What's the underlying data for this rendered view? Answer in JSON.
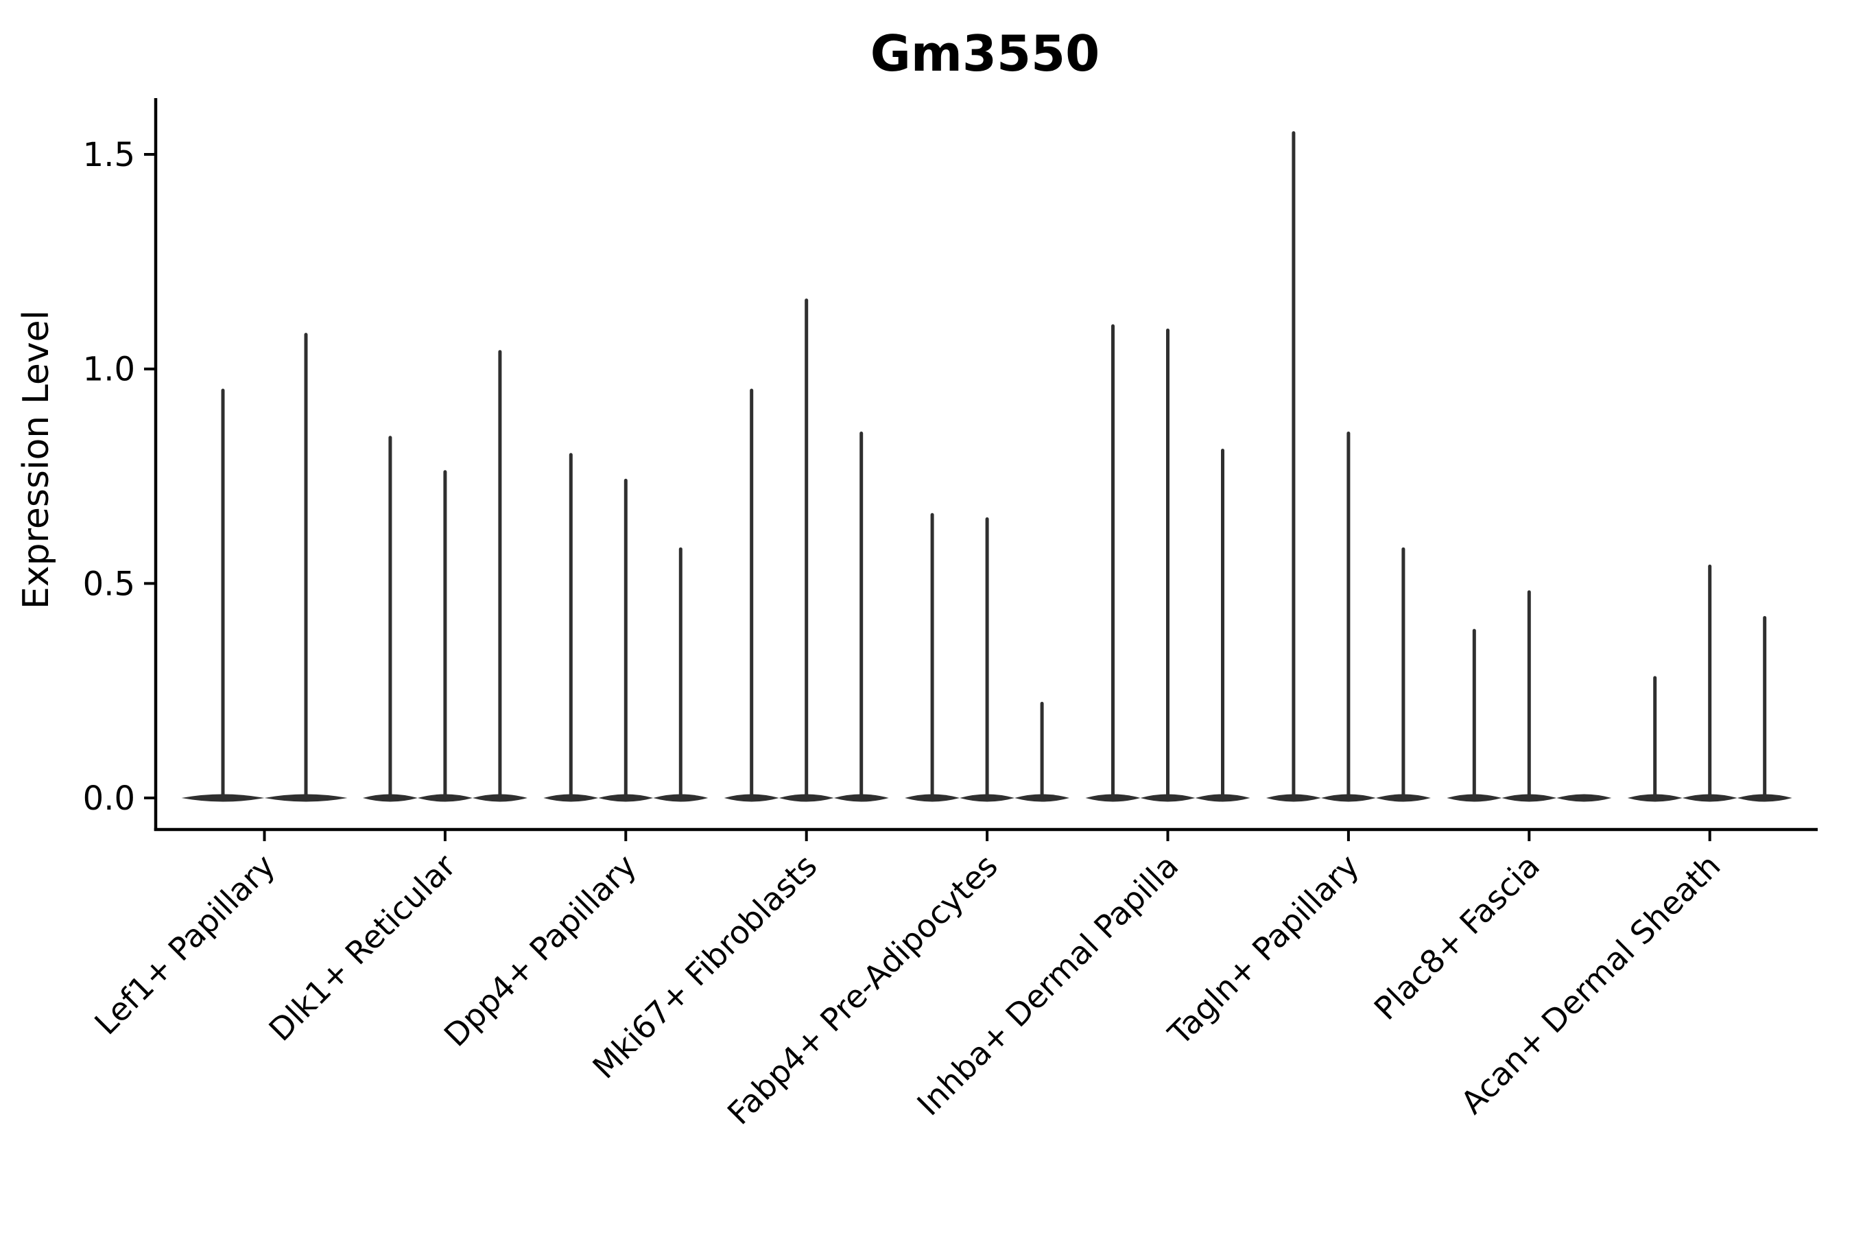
{
  "chart_data": {
    "type": "violin",
    "title": "Gm3550",
    "ylabel": "Expression Level",
    "xlabel": "",
    "ytick_labels": [
      "0.0",
      "0.5",
      "1.0",
      "1.5"
    ],
    "ytick_values": [
      0.0,
      0.5,
      1.0,
      1.5
    ],
    "ylim": [
      -0.074,
      1.63
    ],
    "grid": false,
    "legend": "none",
    "xtick_rotation": 45,
    "categories": [
      "Lef1+ Papillary",
      "Dlk1+ Reticular",
      "Dpp4+ Papillary",
      "Mki67+ Fibroblasts",
      "Fabp4+ Pre-Adipocytes",
      "Inhba+ Dermal Papilla",
      "Tagln+ Papillary",
      "Plac8+ Fascia",
      "Acan+ Dermal Sheath"
    ],
    "groups": [
      {
        "label": "Lef1+ Papillary",
        "violin_maxima": [
          0.95,
          1.08
        ]
      },
      {
        "label": "Dlk1+ Reticular",
        "violin_maxima": [
          0.84,
          0.76,
          1.04
        ]
      },
      {
        "label": "Dpp4+ Papillary",
        "violin_maxima": [
          0.8,
          0.74,
          0.58
        ]
      },
      {
        "label": "Mki67+ Fibroblasts",
        "violin_maxima": [
          0.95,
          1.16,
          0.85
        ]
      },
      {
        "label": "Fabp4+ Pre-Adipocytes",
        "violin_maxima": [
          0.66,
          0.65,
          0.22
        ]
      },
      {
        "label": "Inhba+ Dermal Papilla",
        "violin_maxima": [
          1.1,
          1.09,
          0.81
        ]
      },
      {
        "label": "Tagln+ Papillary",
        "violin_maxima": [
          1.55,
          0.85,
          0.58
        ]
      },
      {
        "label": "Plac8+ Fascia",
        "violin_maxima": [
          0.39,
          0.48,
          0.0
        ]
      },
      {
        "label": "Acan+ Dermal Sheath",
        "violin_maxima": [
          0.28,
          0.54,
          0.42
        ]
      }
    ],
    "colors": {
      "violin": "#2f2f2f",
      "axis": "#000000",
      "text": "#000000",
      "background": "#ffffff"
    }
  }
}
